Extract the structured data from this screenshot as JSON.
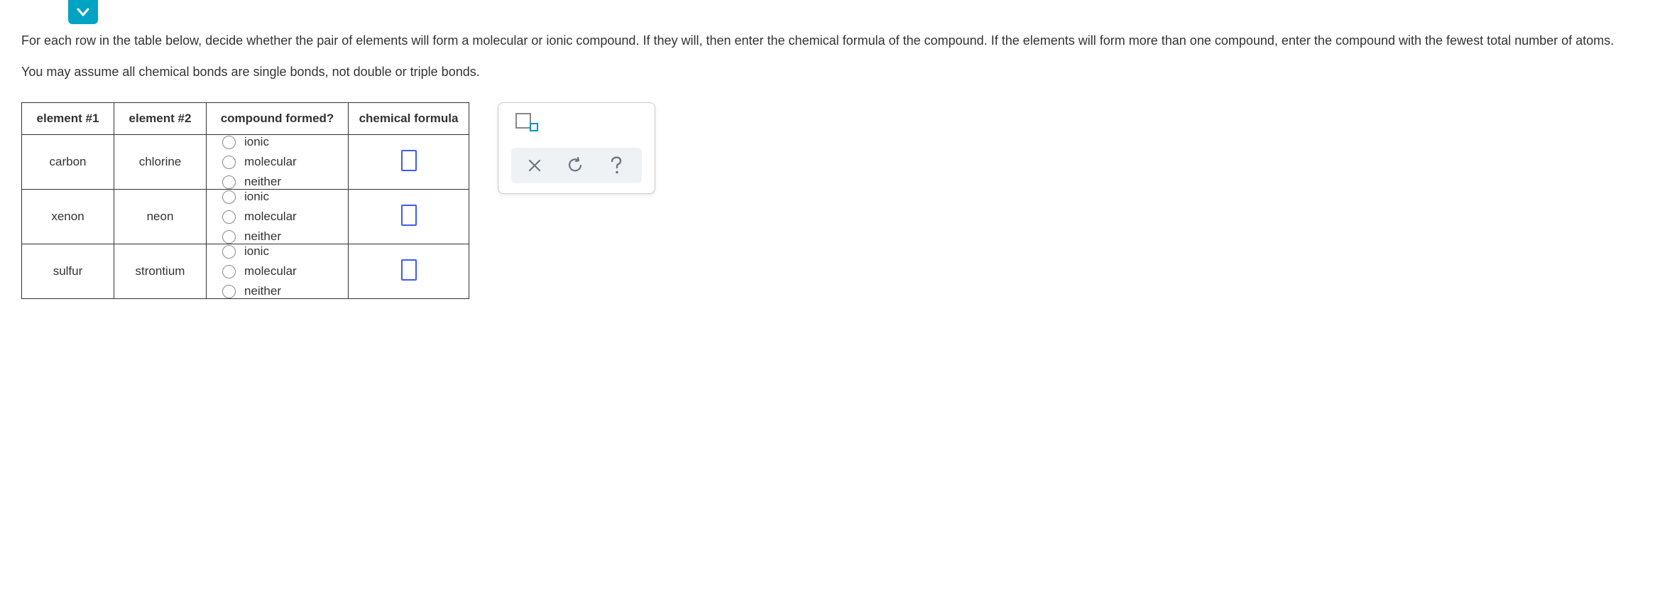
{
  "instructions": {
    "p1": "For each row in the table below, decide whether the pair of elements will form a molecular or ionic compound. If they will, then enter the chemical formula of the compound. If the elements will form more than one compound, enter the compound with the fewest total number of atoms.",
    "p2": "You may assume all chemical bonds are single bonds, not double or triple bonds."
  },
  "table": {
    "headers": {
      "col1": "element #1",
      "col2": "element #2",
      "col3": "compound formed?",
      "col4": "chemical formula"
    },
    "option_labels": {
      "ionic": "ionic",
      "molecular": "molecular",
      "neither": "neither"
    },
    "rows": [
      {
        "e1": "carbon",
        "e2": "chlorine"
      },
      {
        "e1": "xenon",
        "e2": "neon"
      },
      {
        "e1": "sulfur",
        "e2": "strontium"
      }
    ]
  },
  "colors": {
    "caret_bg": "#00a3c4",
    "formula_border": "#3b5bff",
    "sub_small_border": "#0090c0",
    "tool_stroke": "#6b7680",
    "toolbar_bg": "#eef2f5"
  }
}
